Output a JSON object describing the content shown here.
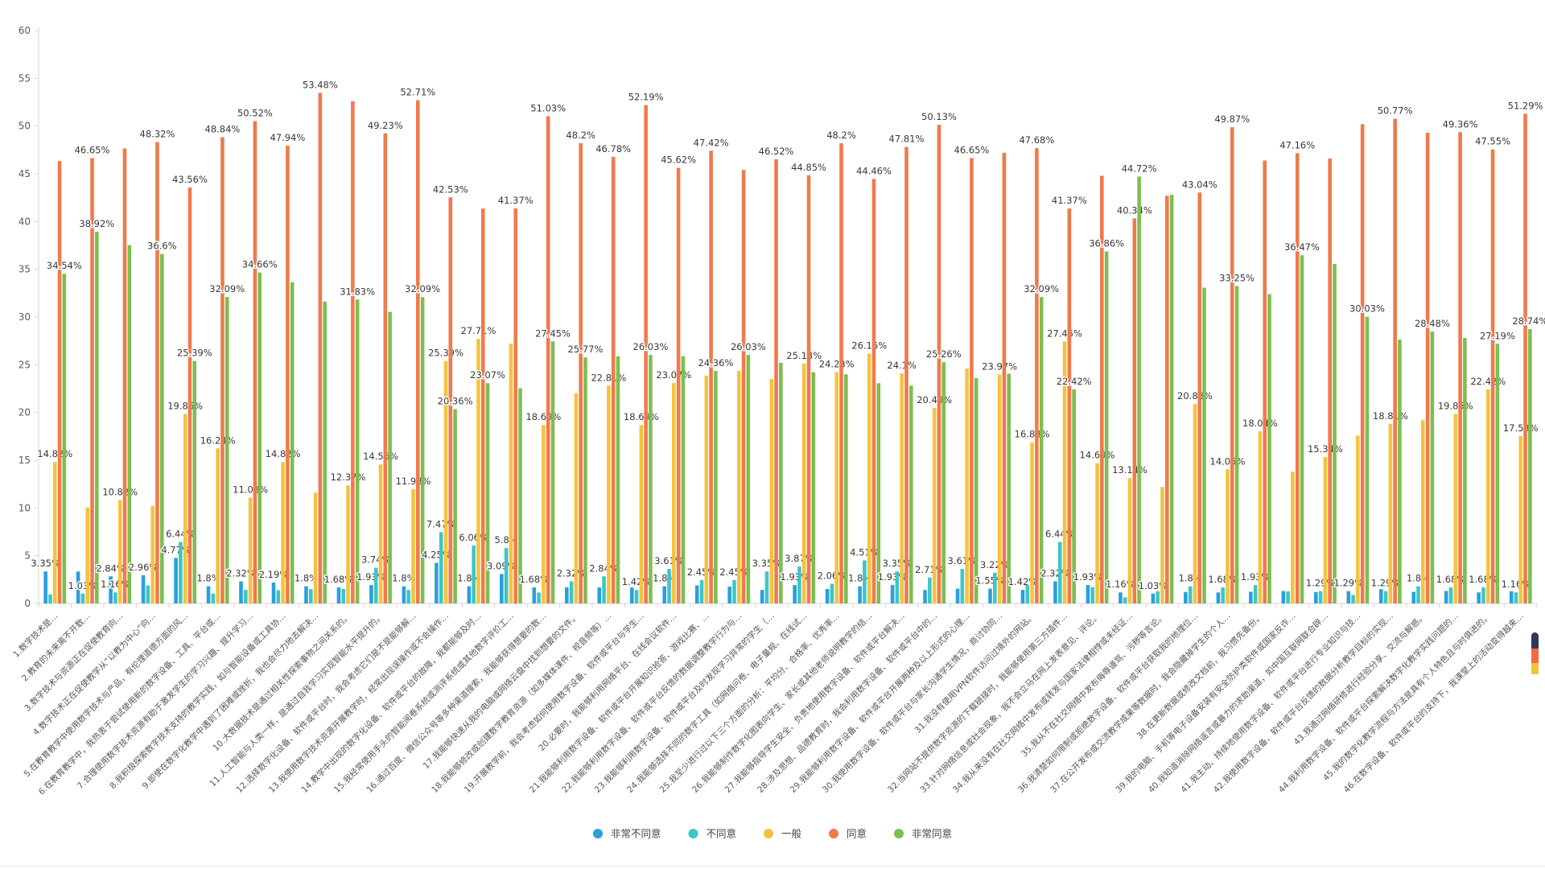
{
  "chart_data": {
    "type": "bar",
    "title": "",
    "value_suffix": "%",
    "ylim": [
      0,
      60
    ],
    "ytick_interval": 5,
    "grid": false,
    "legend_position": "bottom",
    "series": [
      {
        "name": "非常不同意",
        "color": "#2B9FDC"
      },
      {
        "name": "不同意",
        "color": "#3EC5C9"
      },
      {
        "name": "一般",
        "color": "#F4C33E"
      },
      {
        "name": "同意",
        "color": "#EF7A4C"
      },
      {
        "name": "非常同意",
        "color": "#7DBE50"
      }
    ],
    "categories": [
      "1.数字技术是…",
      "2.教育的未来离不开数…",
      "3.数字技术与资源正在促使教育向…",
      "4.数字技术正在促使教学从“以教为中心”向…",
      "5.在教育教学中使用数字技术与产品，有伦理道德方面的风…",
      "6.在教育教学中，我热衷于尝试使用新的数字设备、工具、平台或…",
      "7.合理使用数字技术资源有助于激发学生的学习兴趣、提升学习…",
      "8.我积极探索数字技术支持的教学实践，如与智能设备或工具协…",
      "9.即使在数字化教学中遇到了困难或挫折，我也会尽力地去解决…",
      "10.大数据技术是通过相关性探索事物之间关系的。",
      "11.人工智能与人类一样，是通过自我学习实现智能水平提升的。",
      "12.选择数字化设备、软件或平台时，我会考虑它们是不是能够解…",
      "13.我使用数字技术资源开展教学时，经常出现误操作或不会操作…",
      "14.教学中出现的数字化设备、软件或平台的故障，我都能够及时…",
      "15.我经常使用手头的智能阅卷系统或测评系统或其他数字评价工…",
      "16.通过百度、微信公众号等多种渠道搜索，我能够获得想要的数…",
      "17.我能够快速从我的电脑或网络云盘中找到想要的文件。",
      "18.我能够修改或创建数字教育资源（如多媒体课件、视音频等）…",
      "19.开展教学前，我会考虑如何使用数字设备、软件或平台与学生…",
      "20.必要时，我能够利用网络平台、在线会议软件…",
      "21.我能够利用数字设备、软件或平台开展知识抢答、游戏比赛、…",
      "22.我能够利用数字设备、软件或平台反馈的数据调整教学行为与…",
      "23.我能够利用数字设备、软件或平台及时发现学习异常的学生（…",
      "24.我能够选择不同的数字工具（如网络问卷、电子量规、在线试…",
      "25.我至少进行过以下三个方面的分析：平均分、合格率、优秀率…",
      "26.我能够制作数字化图表向学生、家长或其他老师说明教学的结…",
      "27.我能够指导学生安全、负责地使用数字设备、软件或平台解决…",
      "28.涉及思想、品德教育时，我会利用数字设备、软件或平台中的…",
      "29.我能够利用数字设备、软件或平台开展两种及以上形式的心理…",
      "30.我使用数字设备、软件或平台与家长沟通学生情况，商讨协同…",
      "31.我没有使用VPN软件访问过境外的网站。",
      "32.当网站不提供数字资源的下载链接时，我能够使用第三方插件…",
      "33.针对网络信息或社会现象，我不会立马在网上发表意见、评论。",
      "34.我从来没有在社交网络中发布或转发与国家法律相悖或未经证…",
      "35.我从不在社交网络中发布侮辱谩骂、污秽等言论。",
      "36.我清楚如何限制或拒绝数字设备、软件或平台获取我的地理位…",
      "37.在公开发布或交流教学成果等数据时，我会隐藏掉学生的个人…",
      "38.在更新数据或修改文档前，我习惯先备份。",
      "39.我的电脑、手机等电子设备安装有安全防护类软件或国家反诈…",
      "40.我知道消除网络谣言或暴力的求助渠道，如中国互联网联合辟…",
      "41.我主动、持续地使用数字设备、软件或平台进行专业知识与技…",
      "42.我使用数字设备、软件或平台反馈的数据分析教学目标的实现…",
      "43.我通过网络研修进行经验分享、交流与解惑。",
      "44.我利用数字设备、软件或平台探索解决数字化教学实践问题的…",
      "45.我的数字化教学流程与方法是具有个人特色且与时俱进的。",
      "46.在数字设备、软件或平台的支持下，我课堂上的活动变得越来…"
    ],
    "groups": [
      {
        "values": [
          3.35,
          0.95,
          14.82,
          46.34,
          34.54
        ],
        "show": [
          1,
          0,
          1,
          0,
          1
        ]
      },
      {
        "values": [
          3.35,
          1.03,
          10.05,
          46.65,
          38.92
        ],
        "show": [
          0,
          1,
          0,
          1,
          1
        ]
      },
      {
        "values": [
          2.84,
          1.16,
          10.82,
          47.65,
          37.53
        ],
        "show": [
          1,
          1,
          1,
          0,
          0
        ]
      },
      {
        "values": [
          2.96,
          1.9,
          10.22,
          48.32,
          36.6
        ],
        "show": [
          1,
          0,
          0,
          1,
          1
        ]
      },
      {
        "values": [
          4.77,
          6.44,
          19.85,
          43.56,
          25.39
        ],
        "show": [
          1,
          1,
          1,
          1,
          1
        ]
      },
      {
        "values": [
          1.8,
          1.03,
          16.24,
          48.84,
          32.09
        ],
        "show": [
          1,
          0,
          1,
          1,
          1
        ]
      },
      {
        "values": [
          2.32,
          1.42,
          11.08,
          50.52,
          34.66
        ],
        "show": [
          1,
          0,
          1,
          1,
          1
        ]
      },
      {
        "values": [
          2.19,
          1.4,
          14.82,
          47.94,
          33.65
        ],
        "show": [
          1,
          0,
          1,
          1,
          0
        ]
      },
      {
        "values": [
          1.8,
          1.5,
          11.6,
          53.48,
          31.62
        ],
        "show": [
          1,
          0,
          0,
          1,
          0
        ]
      },
      {
        "values": [
          1.68,
          1.52,
          12.37,
          52.6,
          31.83
        ],
        "show": [
          1,
          0,
          1,
          0,
          1
        ]
      },
      {
        "values": [
          1.93,
          3.74,
          14.56,
          49.23,
          30.54
        ],
        "show": [
          1,
          1,
          1,
          1,
          0
        ]
      },
      {
        "values": [
          1.8,
          1.42,
          11.98,
          52.71,
          32.09
        ],
        "show": [
          1,
          0,
          1,
          1,
          1
        ]
      },
      {
        "values": [
          4.25,
          7.47,
          25.39,
          42.53,
          20.36
        ],
        "show": [
          1,
          1,
          1,
          1,
          1
        ]
      },
      {
        "values": [
          1.8,
          6.06,
          27.71,
          41.36,
          23.07
        ],
        "show": [
          1,
          1,
          1,
          0,
          1
        ]
      },
      {
        "values": [
          3.09,
          5.8,
          27.2,
          41.37,
          22.54
        ],
        "show": [
          1,
          1,
          0,
          1,
          0
        ]
      },
      {
        "values": [
          1.68,
          1.15,
          18.69,
          51.03,
          27.45
        ],
        "show": [
          1,
          0,
          1,
          1,
          1
        ]
      },
      {
        "values": [
          1.7,
          2.32,
          22.01,
          48.2,
          25.77
        ],
        "show": [
          0,
          1,
          0,
          1,
          1
        ]
      },
      {
        "values": [
          1.68,
          2.84,
          22.81,
          46.78,
          25.89
        ],
        "show": [
          0,
          1,
          1,
          1,
          0
        ]
      },
      {
        "values": [
          1.67,
          1.42,
          18.69,
          52.19,
          26.03
        ],
        "show": [
          0,
          1,
          1,
          1,
          1
        ]
      },
      {
        "values": [
          1.8,
          3.61,
          23.07,
          45.62,
          25.9
        ],
        "show": [
          1,
          1,
          1,
          1,
          0
        ]
      },
      {
        "values": [
          1.9,
          2.45,
          23.87,
          47.42,
          24.36
        ],
        "show": [
          0,
          1,
          0,
          1,
          1
        ]
      },
      {
        "values": [
          1.76,
          2.45,
          24.36,
          45.4,
          26.03
        ],
        "show": [
          0,
          1,
          0,
          0,
          1
        ]
      },
      {
        "values": [
          1.42,
          3.35,
          23.5,
          46.52,
          25.21
        ],
        "show": [
          0,
          1,
          0,
          1,
          0
        ]
      },
      {
        "values": [
          1.93,
          3.87,
          25.13,
          44.85,
          24.22
        ],
        "show": [
          1,
          1,
          1,
          1,
          0
        ]
      },
      {
        "values": [
          1.51,
          2.06,
          24.23,
          48.2,
          24.0
        ],
        "show": [
          0,
          1,
          1,
          1,
          0
        ]
      },
      {
        "values": [
          1.8,
          4.51,
          26.16,
          44.46,
          23.07
        ],
        "show": [
          1,
          1,
          1,
          1,
          0
        ]
      },
      {
        "values": [
          1.93,
          3.35,
          24.1,
          47.81,
          22.81
        ],
        "show": [
          1,
          1,
          1,
          1,
          0
        ]
      },
      {
        "values": [
          1.41,
          2.71,
          20.49,
          50.13,
          25.26
        ],
        "show": [
          0,
          1,
          1,
          1,
          1
        ]
      },
      {
        "values": [
          1.55,
          3.61,
          24.6,
          46.65,
          23.59
        ],
        "show": [
          0,
          1,
          0,
          1,
          0
        ]
      },
      {
        "values": [
          1.55,
          3.22,
          23.97,
          47.2,
          24.06
        ],
        "show": [
          1,
          1,
          1,
          0,
          0
        ]
      },
      {
        "values": [
          1.42,
          1.93,
          16.88,
          47.68,
          32.09
        ],
        "show": [
          1,
          0,
          1,
          1,
          1
        ]
      },
      {
        "values": [
          2.32,
          6.44,
          27.45,
          41.37,
          22.42
        ],
        "show": [
          1,
          1,
          1,
          1,
          1
        ]
      },
      {
        "values": [
          1.93,
          1.72,
          14.69,
          44.8,
          36.86
        ],
        "show": [
          1,
          0,
          1,
          0,
          1
        ]
      },
      {
        "values": [
          1.16,
          0.64,
          13.14,
          40.34,
          44.72
        ],
        "show": [
          1,
          0,
          1,
          1,
          1
        ]
      },
      {
        "values": [
          1.03,
          1.27,
          12.2,
          42.7,
          42.8
        ],
        "show": [
          1,
          0,
          0,
          0,
          0
        ]
      },
      {
        "values": [
          1.2,
          1.8,
          20.88,
          43.04,
          33.08
        ],
        "show": [
          0,
          1,
          1,
          1,
          0
        ]
      },
      {
        "values": [
          1.16,
          1.68,
          14.05,
          49.87,
          33.25
        ],
        "show": [
          0,
          1,
          1,
          1,
          1
        ]
      },
      {
        "values": [
          1.23,
          1.93,
          18.04,
          46.4,
          32.4
        ],
        "show": [
          0,
          1,
          1,
          0,
          0
        ]
      },
      {
        "values": [
          1.3,
          1.27,
          13.8,
          47.16,
          36.47
        ],
        "show": [
          0,
          0,
          0,
          1,
          1
        ]
      },
      {
        "values": [
          1.2,
          1.29,
          15.34,
          46.6,
          35.57
        ],
        "show": [
          0,
          1,
          1,
          0,
          0
        ]
      },
      {
        "values": [
          1.29,
          0.9,
          17.58,
          50.2,
          30.03
        ],
        "show": [
          1,
          0,
          0,
          0,
          1
        ]
      },
      {
        "values": [
          1.5,
          1.29,
          18.81,
          50.77,
          27.63
        ],
        "show": [
          0,
          1,
          1,
          1,
          0
        ]
      },
      {
        "values": [
          1.22,
          1.8,
          19.2,
          49.3,
          28.48
        ],
        "show": [
          0,
          1,
          0,
          0,
          1
        ]
      },
      {
        "values": [
          1.31,
          1.68,
          19.85,
          49.36,
          27.8
        ],
        "show": [
          0,
          1,
          1,
          1,
          0
        ]
      },
      {
        "values": [
          1.16,
          1.68,
          22.42,
          47.55,
          27.19
        ],
        "show": [
          0,
          1,
          1,
          1,
          1
        ]
      },
      {
        "values": [
          1.28,
          1.16,
          17.53,
          51.29,
          28.74
        ],
        "show": [
          0,
          1,
          1,
          1,
          1
        ]
      }
    ]
  },
  "legend": {
    "items": [
      "非常不同意",
      "不同意",
      "一般",
      "同意",
      "非常同意"
    ]
  },
  "widget": {
    "name": "mini-scroll-pill",
    "colors": [
      "#2E3A59",
      "#EF6A45",
      "#F4C33E"
    ]
  }
}
